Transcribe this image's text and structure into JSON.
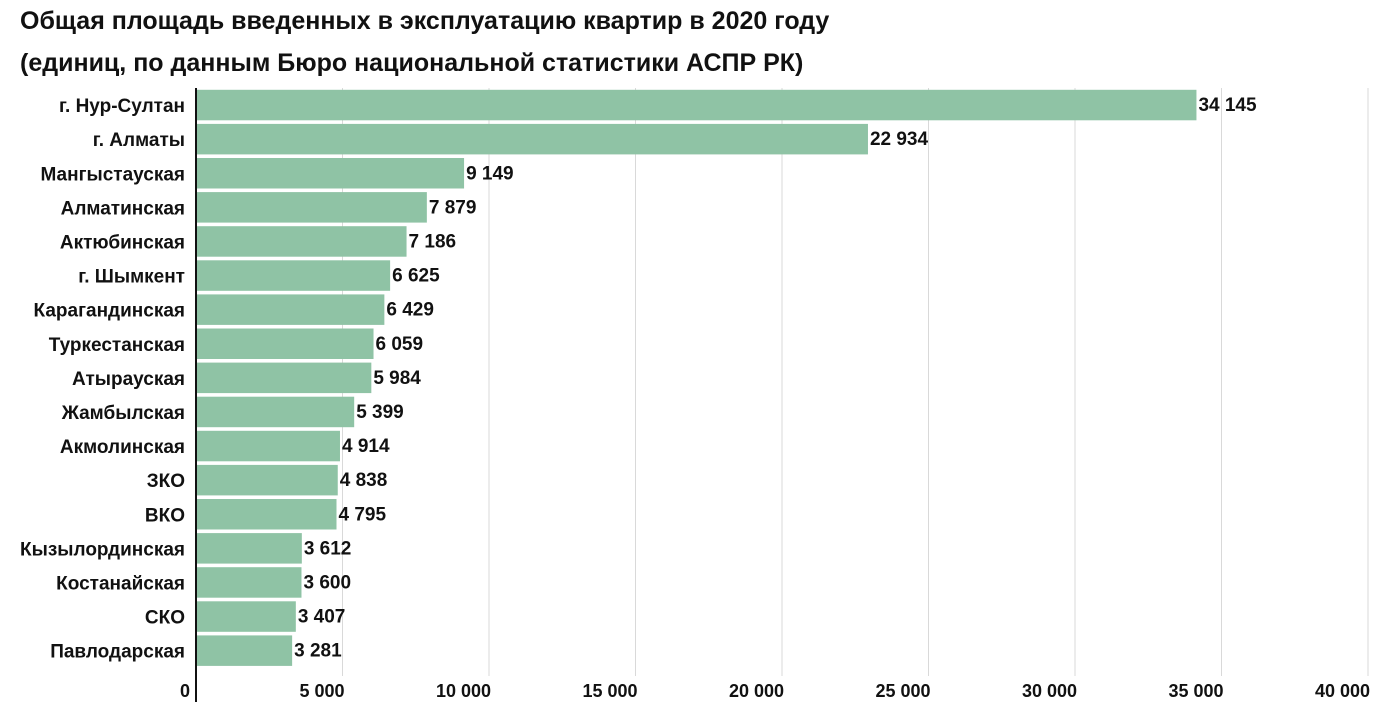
{
  "title_line1": "Общая площадь введенных в эксплуатацию квартир в 2020 году",
  "title_line2": "(единиц, по данным Бюро национальной статистики АСПР РК)",
  "chart_data": {
    "type": "bar",
    "orientation": "horizontal",
    "title": "Общая площадь введенных в эксплуатацию квартир в 2020 году (единиц, по данным Бюро национальной статистики АСПР РК)",
    "categories": [
      "г. Нур-Султан",
      "г. Алматы",
      "Мангыстауская",
      "Алматинская",
      "Актюбинская",
      "г. Шымкент",
      "Карагандинская",
      "Туркестанская",
      "Атырауская",
      "Жамбылская",
      "Акмолинская",
      "ЗКО",
      "ВКО",
      "Кызылординская",
      "Костанайская",
      "СКО",
      "Павлодарская"
    ],
    "values": [
      34145,
      22934,
      9149,
      7879,
      7186,
      6625,
      6429,
      6059,
      5984,
      5399,
      4914,
      4838,
      4795,
      3612,
      3600,
      3407,
      3281
    ],
    "value_labels": [
      "34 145",
      "22 934",
      "9 149",
      "7 879",
      "7 186",
      "6 625",
      "6 429",
      "6 059",
      "5 984",
      "5 399",
      "4 914",
      "4 838",
      "4 795",
      "3 612",
      "3 600",
      "3 407",
      "3 281"
    ],
    "xlim": [
      0,
      40000
    ],
    "xticks": [
      0,
      5000,
      10000,
      15000,
      20000,
      25000,
      30000,
      35000,
      40000
    ],
    "xtick_labels": [
      "0",
      "5 000",
      "10 000",
      "15 000",
      "20 000",
      "25 000",
      "30 000",
      "35 000",
      "40 000"
    ],
    "xlabel": "",
    "ylabel": "",
    "grid": true,
    "legend": "none",
    "bar_color": "#8fc3a5",
    "grid_color": "#d9d9d9"
  }
}
